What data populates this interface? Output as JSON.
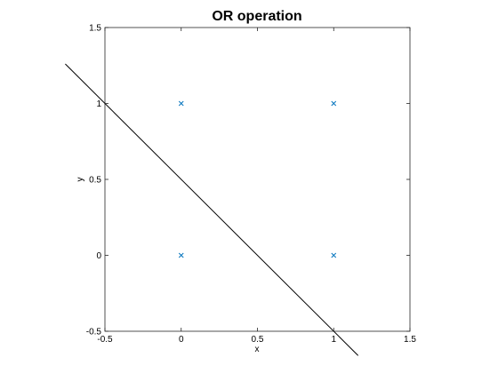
{
  "chart_data": {
    "type": "scatter",
    "title": "OR operation",
    "xlabel": "x",
    "ylabel": "y",
    "xlim": [
      -0.5,
      1.5
    ],
    "ylim": [
      -0.5,
      1.5
    ],
    "xticks": [
      -0.5,
      0,
      0.5,
      1,
      1.5
    ],
    "yticks": [
      -0.5,
      0,
      0.5,
      1,
      1.5
    ],
    "xtick_labels": [
      "-0.5",
      "0",
      "0.5",
      "1",
      "1.5"
    ],
    "ytick_labels": [
      "-0.5",
      "0",
      "0.5",
      "1",
      "1.5"
    ],
    "grid": false,
    "series": [
      {
        "type": "scatter",
        "marker": "x",
        "color": "#0072bd",
        "x": [
          0,
          0,
          1,
          1
        ],
        "y": [
          0,
          1,
          0,
          1
        ]
      },
      {
        "type": "line",
        "color": "#000000",
        "x": [
          -0.76,
          1.16
        ],
        "y": [
          1.26,
          -0.66
        ]
      }
    ]
  }
}
